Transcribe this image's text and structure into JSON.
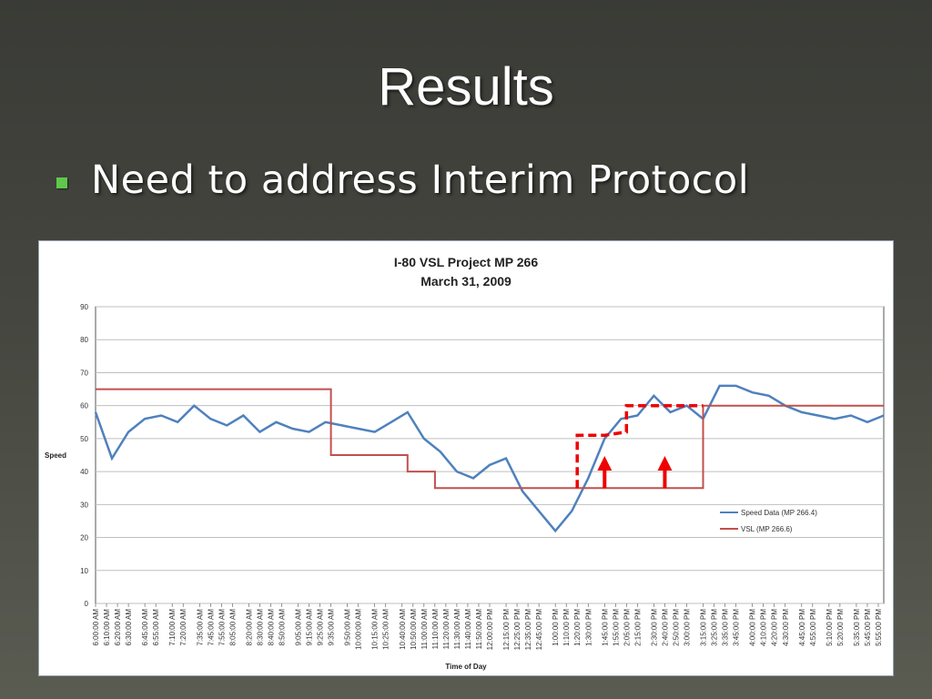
{
  "slide": {
    "title": "Results",
    "bullet": "Need to address Interim Protocol"
  },
  "colors": {
    "speed": "#4f81bd",
    "vsl": "#c0504d",
    "annotation": "#ee0000",
    "bullet": "#5ec84a"
  },
  "chart_data": {
    "type": "line",
    "title": "I-80 VSL Project MP 266",
    "subtitle": "March 31, 2009",
    "xlabel": "Time of Day",
    "ylabel": "Speed",
    "ylim": [
      0,
      90
    ],
    "yticks": [
      0,
      10,
      20,
      30,
      40,
      50,
      60,
      70,
      80,
      90
    ],
    "grid": true,
    "legend_position": "right",
    "x_range": [
      "6:00:00 AM",
      "6:00:00 PM"
    ],
    "x_tick_labels": [
      "6:00:00 AM",
      "6:10:00 AM",
      "6:20:00 AM",
      "6:30:00 AM",
      "6:45:00 AM",
      "6:55:00 AM",
      "7:10:00 AM",
      "7:20:00 AM",
      "7:35:00 AM",
      "7:45:00 AM",
      "7:55:00 AM",
      "8:05:00 AM",
      "8:20:00 AM",
      "8:30:00 AM",
      "8:40:00 AM",
      "8:50:00 AM",
      "9:05:00 AM",
      "9:15:00 AM",
      "9:25:00 AM",
      "9:35:00 AM",
      "9:50:00 AM",
      "10:00:00 AM",
      "10:15:00 AM",
      "10:25:00 AM",
      "10:40:00 AM",
      "10:50:00 AM",
      "11:00:00 AM",
      "11:10:00 AM",
      "11:20:00 AM",
      "11:30:00 AM",
      "11:40:00 AM",
      "11:50:00 AM",
      "12:00:00 PM",
      "12:15:00 PM",
      "12:25:00 PM",
      "12:35:00 PM",
      "12:45:00 PM",
      "1:00:00 PM",
      "1:10:00 PM",
      "1:20:00 PM",
      "1:30:00 PM",
      "1:45:00 PM",
      "1:55:00 PM",
      "2:05:00 PM",
      "2:15:00 PM",
      "2:30:00 PM",
      "2:40:00 PM",
      "2:50:00 PM",
      "3:00:00 PM",
      "3:15:00 PM",
      "3:25:00 PM",
      "3:35:00 PM",
      "3:45:00 PM",
      "4:00:00 PM",
      "4:10:00 PM",
      "4:20:00 PM",
      "4:30:00 PM",
      "4:45:00 PM",
      "4:55:00 PM",
      "5:10:00 PM",
      "5:20:00 PM",
      "5:35:00 PM",
      "5:45:00 PM",
      "5:55:00 PM"
    ],
    "series": [
      {
        "name": "Speed Data (MP 266.4)",
        "x": [
          "6:00:00 AM",
          "6:15:00 AM",
          "6:30:00 AM",
          "6:45:00 AM",
          "7:00:00 AM",
          "7:15:00 AM",
          "7:30:00 AM",
          "7:45:00 AM",
          "8:00:00 AM",
          "8:15:00 AM",
          "8:30:00 AM",
          "8:45:00 AM",
          "9:00:00 AM",
          "9:15:00 AM",
          "9:30:00 AM",
          "9:45:00 AM",
          "10:00:00 AM",
          "10:15:00 AM",
          "10:30:00 AM",
          "10:45:00 AM",
          "11:00:00 AM",
          "11:15:00 AM",
          "11:30:00 AM",
          "11:45:00 AM",
          "12:00:00 PM",
          "12:15:00 PM",
          "12:30:00 PM",
          "12:45:00 PM",
          "1:00:00 PM",
          "1:15:00 PM",
          "1:30:00 PM",
          "1:45:00 PM",
          "2:00:00 PM",
          "2:15:00 PM",
          "2:30:00 PM",
          "2:45:00 PM",
          "3:00:00 PM",
          "3:15:00 PM",
          "3:30:00 PM",
          "3:45:00 PM",
          "4:00:00 PM",
          "4:15:00 PM",
          "4:30:00 PM",
          "4:45:00 PM",
          "5:00:00 PM",
          "5:15:00 PM",
          "5:30:00 PM",
          "5:45:00 PM",
          "6:00:00 PM"
        ],
        "values": [
          58,
          44,
          52,
          56,
          57,
          55,
          60,
          56,
          54,
          57,
          52,
          55,
          53,
          52,
          55,
          54,
          53,
          52,
          55,
          58,
          50,
          46,
          40,
          38,
          42,
          44,
          34,
          28,
          22,
          28,
          38,
          50,
          56,
          57,
          63,
          58,
          60,
          56,
          66,
          66,
          64,
          63,
          60,
          58,
          57,
          56,
          57,
          55,
          57
        ]
      },
      {
        "name": "VSL (MP 266.6)",
        "x": [
          "6:00:00 AM",
          "9:35:00 AM",
          "9:35:00 AM",
          "10:45:00 AM",
          "10:45:00 AM",
          "11:10:00 AM",
          "11:10:00 AM",
          "3:15:00 PM",
          "3:15:00 PM",
          "6:00:00 PM"
        ],
        "values": [
          65,
          65,
          45,
          45,
          40,
          40,
          35,
          35,
          60,
          60
        ]
      },
      {
        "name": "",
        "x": [
          "1:20:00 PM",
          "1:20:00 PM",
          "1:45:00 PM",
          "2:05:00 PM",
          "2:05:00 PM",
          "3:15:00 PM"
        ],
        "values": [
          35,
          51,
          51,
          52,
          60,
          60
        ]
      }
    ]
  }
}
